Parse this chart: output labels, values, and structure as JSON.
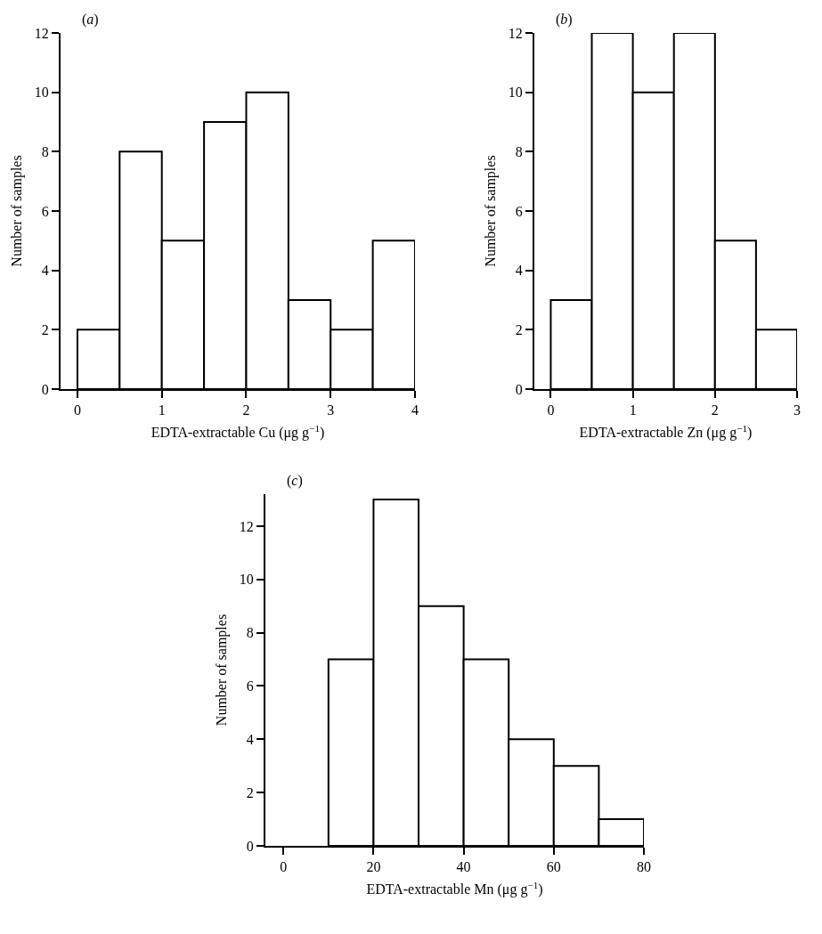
{
  "chart_data": [
    {
      "type": "histogram",
      "title": "(a)",
      "xlabel": "EDTA-extractable Cu (μg g$^{−1}$)",
      "ylabel": "Number of samples",
      "bins": [
        0,
        0.5,
        1,
        1.5,
        2,
        2.5,
        3,
        3.5,
        4
      ],
      "values": [
        2,
        8,
        5,
        9,
        10,
        3,
        2,
        5
      ],
      "color": "#ffffff",
      "xlim": [
        -0.2,
        4
      ],
      "xticks": [
        0,
        1,
        2,
        3,
        4
      ],
      "ylim": [
        0,
        12
      ],
      "yticks": [
        0,
        2,
        4,
        6,
        8,
        10,
        12
      ],
      "grid": false
    },
    {
      "type": "histogram",
      "title": "(b)",
      "xlabel": "EDTA-extractable Zn (μg g$^{−1}$)",
      "ylabel": "Number of samples",
      "bins": [
        0,
        0.5,
        1,
        1.5,
        2,
        2.5,
        3
      ],
      "values": [
        3,
        12,
        10,
        12,
        5,
        2
      ],
      "color": "#ffffff",
      "xlim": [
        -0.2,
        3
      ],
      "xticks": [
        0,
        1,
        2,
        3
      ],
      "ylim": [
        0,
        12
      ],
      "yticks": [
        0,
        2,
        4,
        6,
        8,
        10,
        12
      ],
      "grid": false
    },
    {
      "type": "histogram",
      "title": "(c)",
      "xlabel": "EDTA-extractable Mn (μg g$^{−1}$)",
      "ylabel": "Number of samples",
      "bins": [
        10,
        20,
        30,
        40,
        50,
        60,
        70,
        80
      ],
      "values": [
        7,
        13,
        9,
        7,
        4,
        3,
        1
      ],
      "color": "#ffffff",
      "xlim": [
        -4,
        80
      ],
      "xticks": [
        0,
        20,
        40,
        60,
        80
      ],
      "ylim": [
        0,
        13.2
      ],
      "yticks": [
        0,
        2,
        4,
        6,
        8,
        10,
        12
      ],
      "grid": false
    }
  ]
}
